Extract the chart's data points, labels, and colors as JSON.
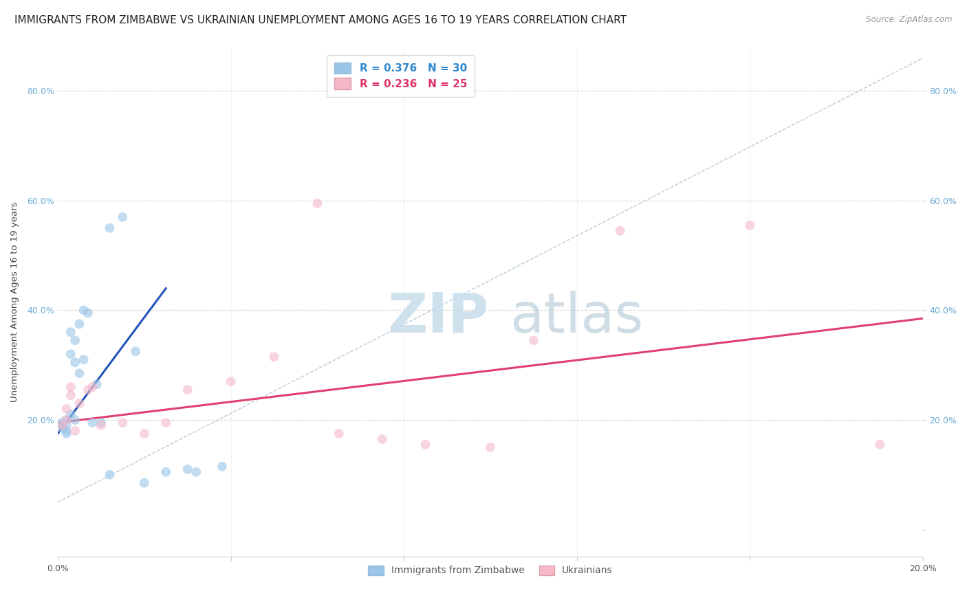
{
  "title": "IMMIGRANTS FROM ZIMBABWE VS UKRAINIAN UNEMPLOYMENT AMONG AGES 16 TO 19 YEARS CORRELATION CHART",
  "source": "Source: ZipAtlas.com",
  "ylabel": "Unemployment Among Ages 16 to 19 years",
  "xlim": [
    0.0,
    0.2
  ],
  "ylim": [
    -0.05,
    0.88
  ],
  "xtick_positions": [
    0.0,
    0.04,
    0.08,
    0.12,
    0.16,
    0.2
  ],
  "xtick_labels": [
    "0.0%",
    "",
    "",
    "",
    "",
    "20.0%"
  ],
  "ytick_positions": [
    0.0,
    0.2,
    0.4,
    0.6,
    0.8
  ],
  "ytick_labels_left": [
    "",
    "20.0%",
    "40.0%",
    "60.0%",
    "80.0%"
  ],
  "ytick_labels_right": [
    "",
    "20.0%",
    "40.0%",
    "60.0%",
    "80.0%"
  ],
  "blue_scatter_x": [
    0.001,
    0.001,
    0.001,
    0.002,
    0.002,
    0.002,
    0.002,
    0.003,
    0.003,
    0.003,
    0.004,
    0.004,
    0.004,
    0.005,
    0.005,
    0.006,
    0.006,
    0.007,
    0.008,
    0.009,
    0.01,
    0.012,
    0.015,
    0.018,
    0.025,
    0.03,
    0.032,
    0.038,
    0.012,
    0.02
  ],
  "blue_scatter_y": [
    0.185,
    0.19,
    0.195,
    0.175,
    0.18,
    0.19,
    0.2,
    0.21,
    0.32,
    0.36,
    0.2,
    0.305,
    0.345,
    0.375,
    0.285,
    0.31,
    0.4,
    0.395,
    0.195,
    0.265,
    0.195,
    0.55,
    0.57,
    0.325,
    0.105,
    0.11,
    0.105,
    0.115,
    0.1,
    0.085
  ],
  "pink_scatter_x": [
    0.001,
    0.002,
    0.002,
    0.003,
    0.003,
    0.004,
    0.005,
    0.007,
    0.008,
    0.01,
    0.015,
    0.02,
    0.025,
    0.03,
    0.04,
    0.05,
    0.06,
    0.065,
    0.075,
    0.085,
    0.1,
    0.11,
    0.13,
    0.16,
    0.19
  ],
  "pink_scatter_y": [
    0.19,
    0.2,
    0.22,
    0.245,
    0.26,
    0.18,
    0.23,
    0.255,
    0.26,
    0.19,
    0.195,
    0.175,
    0.195,
    0.255,
    0.27,
    0.315,
    0.595,
    0.175,
    0.165,
    0.155,
    0.15,
    0.345,
    0.545,
    0.555,
    0.155
  ],
  "blue_line_x": [
    0.0,
    0.025
  ],
  "blue_line_y": [
    0.175,
    0.44
  ],
  "pink_line_x": [
    0.0,
    0.2
  ],
  "pink_line_y": [
    0.195,
    0.385
  ],
  "diag_line_x": [
    0.0,
    0.2
  ],
  "diag_line_y": [
    0.05,
    0.86
  ],
  "blue_color": "#99c5e8",
  "pink_color": "#f4b8c8",
  "blue_line_color": "#2255bb",
  "pink_line_color": "#e04070",
  "diag_line_color": "#b8ccd8",
  "background_color": "#ffffff",
  "grid_color": "#d8d8d8",
  "title_fontsize": 11,
  "axis_label_fontsize": 9.5,
  "tick_fontsize": 9,
  "scatter_size": 100,
  "scatter_alpha": 0.6
}
